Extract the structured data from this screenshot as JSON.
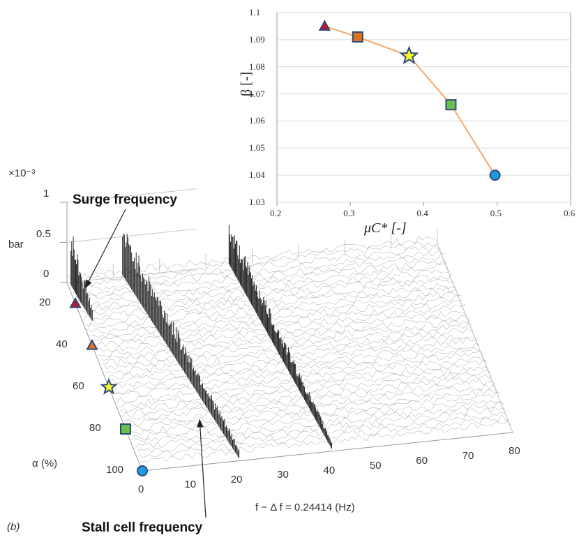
{
  "panel_label": "(b)",
  "chart_data": [
    {
      "type": "line",
      "role": "waterfall",
      "zlabel": "bar",
      "z_multiplier": "×10⁻³",
      "zticks": [
        "0",
        "0.5",
        "1"
      ],
      "xlabel": "f − Δ f = 0.24414 (Hz)",
      "xticks": [
        0,
        10,
        20,
        30,
        40,
        50,
        60,
        70,
        80
      ],
      "xlim": [
        0,
        80
      ],
      "ylabel": "α (%)",
      "yticks": [
        20,
        40,
        60,
        80,
        100
      ],
      "ylim": [
        10,
        100
      ],
      "zlim": [
        0,
        1
      ],
      "annotations": [
        "Surge frequency",
        "Stall cell frequency"
      ],
      "series": [
        {
          "points": [
            [
              0.5,
              12
            ],
            [
              1,
              20
            ],
            [
              2,
              30
            ]
          ],
          "peak": 0.7
        },
        {
          "points": [
            [
              12,
              10
            ],
            [
              15,
              40
            ],
            [
              18,
              70
            ],
            [
              21,
              100
            ]
          ],
          "peak": 0.6
        },
        {
          "points": [
            [
              35,
              10
            ],
            [
              37,
              40
            ],
            [
              39,
              70
            ],
            [
              41,
              100
            ]
          ],
          "peak": 0.5
        }
      ],
      "markers": [
        {
          "alpha": 20,
          "shape": "triangle",
          "color": "#c8102e"
        },
        {
          "alpha": 40,
          "shape": "triangle",
          "color": "#e07020"
        },
        {
          "alpha": 60,
          "shape": "star",
          "color": "#f6f62a"
        },
        {
          "alpha": 80,
          "shape": "square",
          "color": "#6abf4b"
        },
        {
          "alpha": 100,
          "shape": "circle",
          "color": "#1e9be0"
        }
      ]
    },
    {
      "type": "line",
      "role": "inset",
      "xlabel": "μC* [-]",
      "ylabel": "β [-]",
      "xlim": [
        0.2,
        0.6
      ],
      "ylim": [
        1.03,
        1.1
      ],
      "xticks": [
        "0.2",
        "0.3",
        "0.4",
        "0.5",
        "0.6"
      ],
      "yticks": [
        "1.03",
        "1.04",
        "1.05",
        "1.06",
        "1.07",
        "1.08",
        "1.09",
        "1.1"
      ],
      "line_color": "#f4a869",
      "points": [
        {
          "x": 0.265,
          "y": 1.095,
          "shape": "triangle",
          "color": "#c8102e"
        },
        {
          "x": 0.31,
          "y": 1.091,
          "shape": "square",
          "color": "#e07020"
        },
        {
          "x": 0.38,
          "y": 1.084,
          "shape": "star",
          "color": "#f6f62a"
        },
        {
          "x": 0.437,
          "y": 1.066,
          "shape": "square",
          "color": "#6abf4b"
        },
        {
          "x": 0.497,
          "y": 1.04,
          "shape": "circle",
          "color": "#1e9be0"
        }
      ]
    }
  ]
}
